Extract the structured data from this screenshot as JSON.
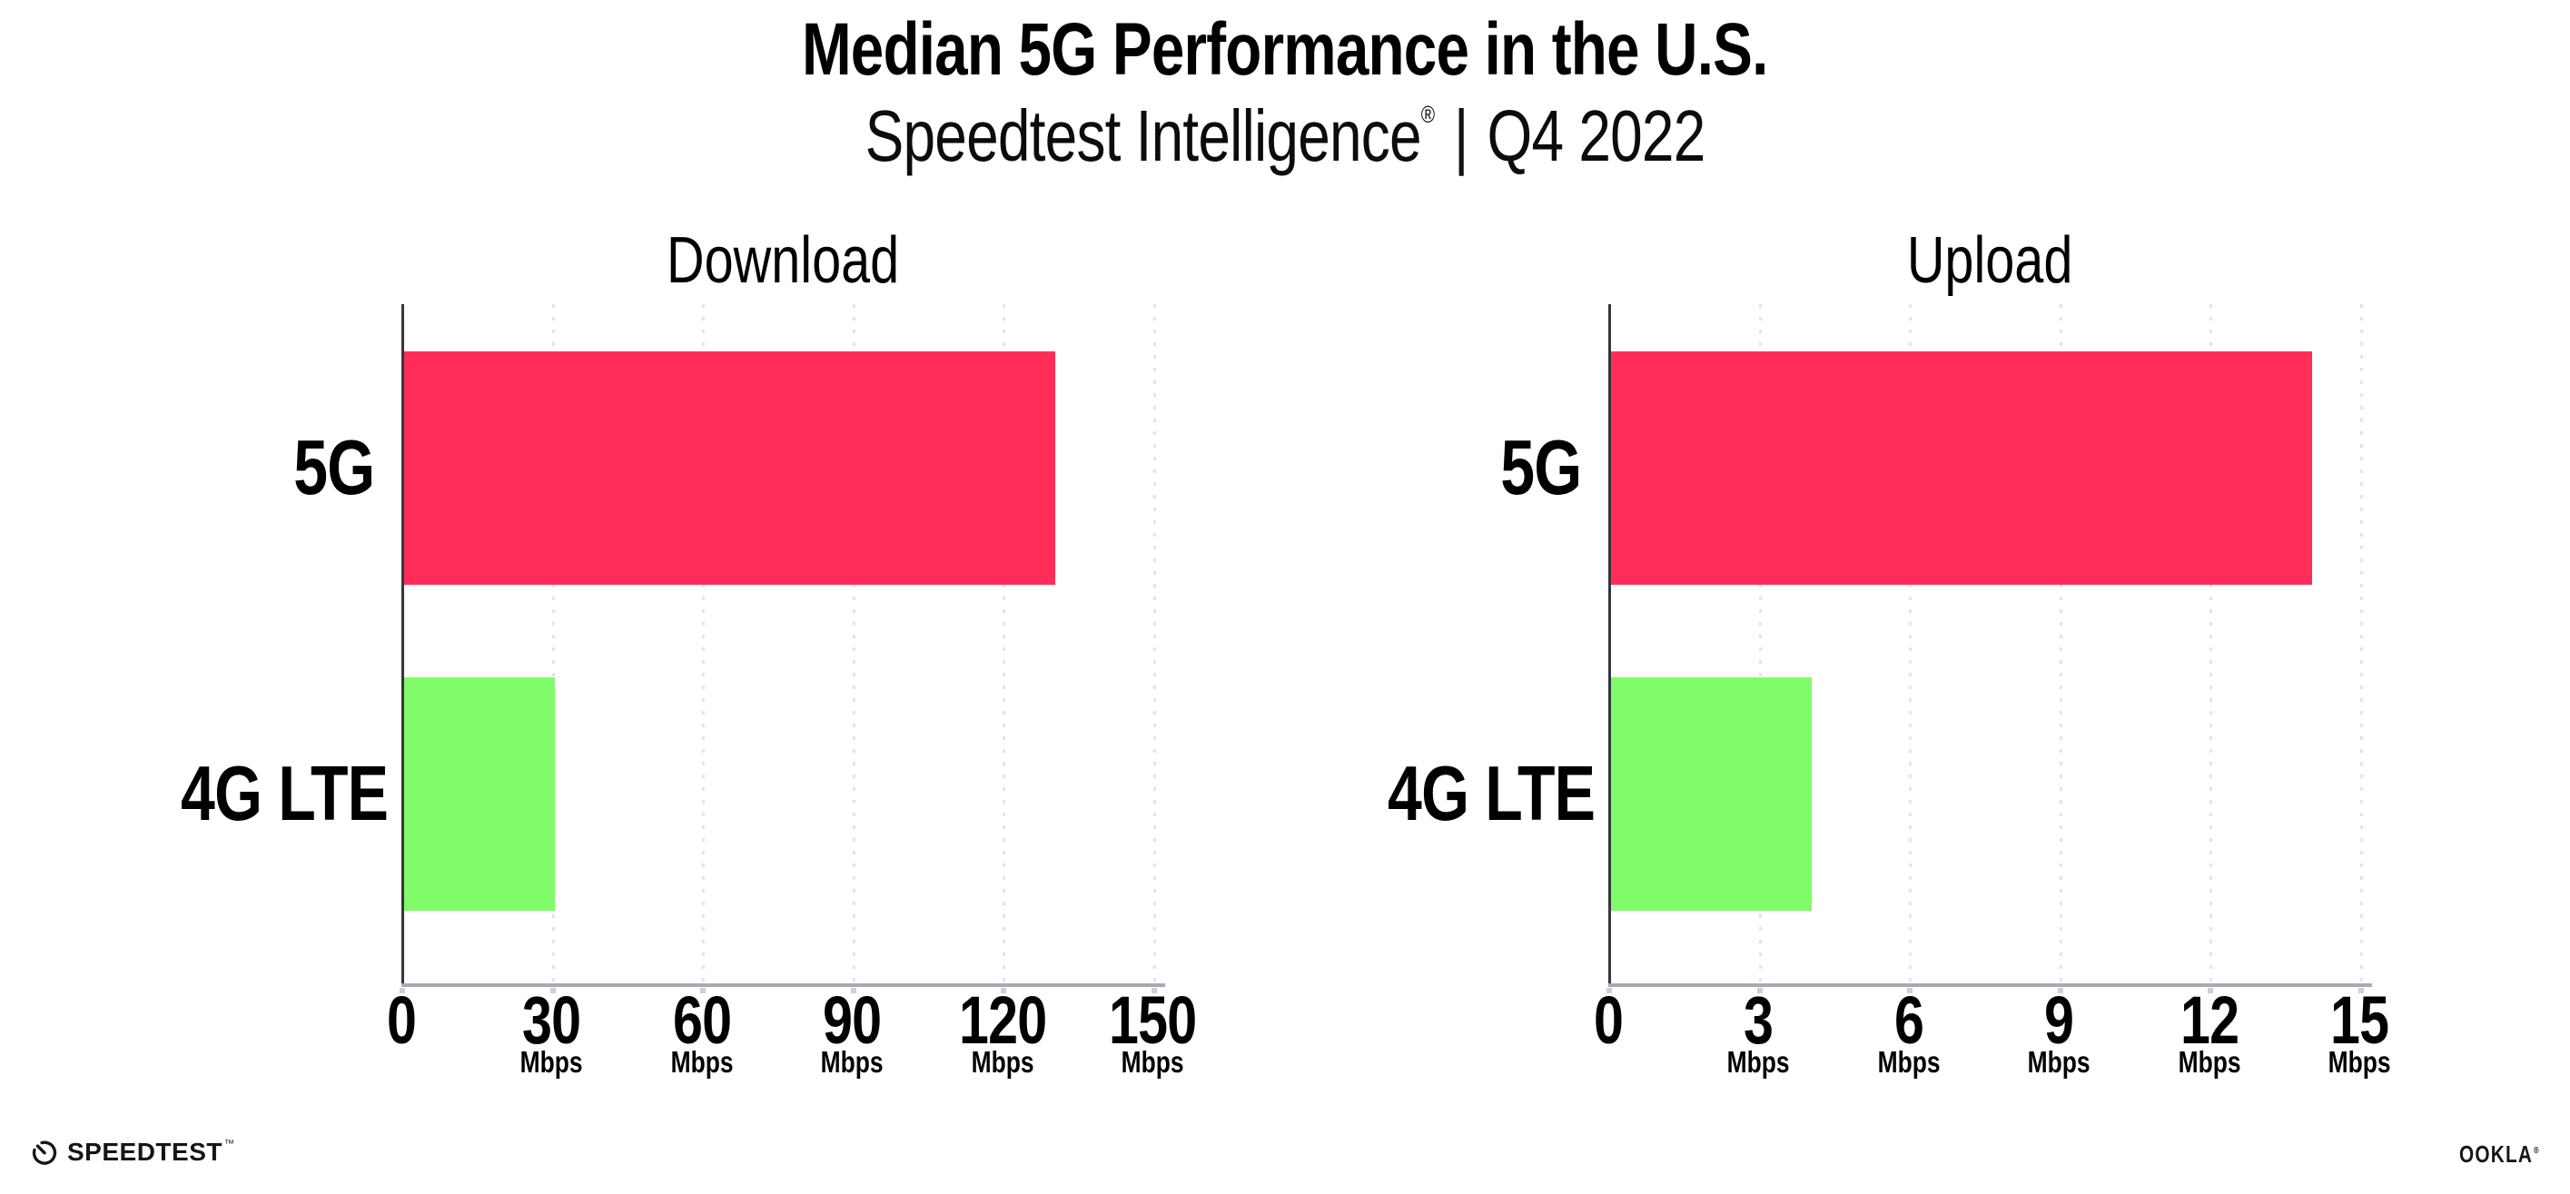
{
  "header": {
    "title": "Median 5G Performance in the U.S.",
    "subtitle_brand": "Speedtest Intelligence",
    "subtitle_registered": "®",
    "subtitle_separator": "|",
    "subtitle_quarter": "Q4 2022"
  },
  "colors": {
    "bar_5g": "#ff2d58",
    "bar_4g_lte": "#80fb69",
    "gridline": "#e3e3ee",
    "y_axis_line": "#35363d",
    "x_baseline": "#a9a9b1",
    "text": "#000000"
  },
  "chart_data": [
    {
      "type": "bar",
      "orientation": "horizontal",
      "title": "Download",
      "categories": [
        "5G",
        "4G LTE"
      ],
      "values": [
        130,
        30
      ],
      "unit": "Mbps",
      "xlim": [
        0,
        150
      ],
      "xticks": [
        0,
        30,
        60,
        90,
        120,
        150
      ],
      "xtick_unit_label": "Mbps",
      "grid": "dotted-vertical",
      "legend": "none",
      "bar_colors": [
        "#ff2d58",
        "#80fb69"
      ]
    },
    {
      "type": "bar",
      "orientation": "horizontal",
      "title": "Upload",
      "categories": [
        "5G",
        "4G LTE"
      ],
      "values": [
        14,
        4
      ],
      "unit": "Mbps",
      "xlim": [
        0,
        15
      ],
      "xticks": [
        0,
        3,
        6,
        9,
        12,
        15
      ],
      "xtick_unit_label": "Mbps",
      "grid": "dotted-vertical",
      "legend": "none",
      "bar_colors": [
        "#ff2d58",
        "#80fb69"
      ]
    }
  ],
  "footer": {
    "speedtest_wordmark": "SPEEDTEST",
    "speedtest_trademark": "™",
    "speedtest_icon": "speedometer-gauge-icon",
    "ookla_wordmark": "OOKLA",
    "ookla_registered": "®"
  }
}
